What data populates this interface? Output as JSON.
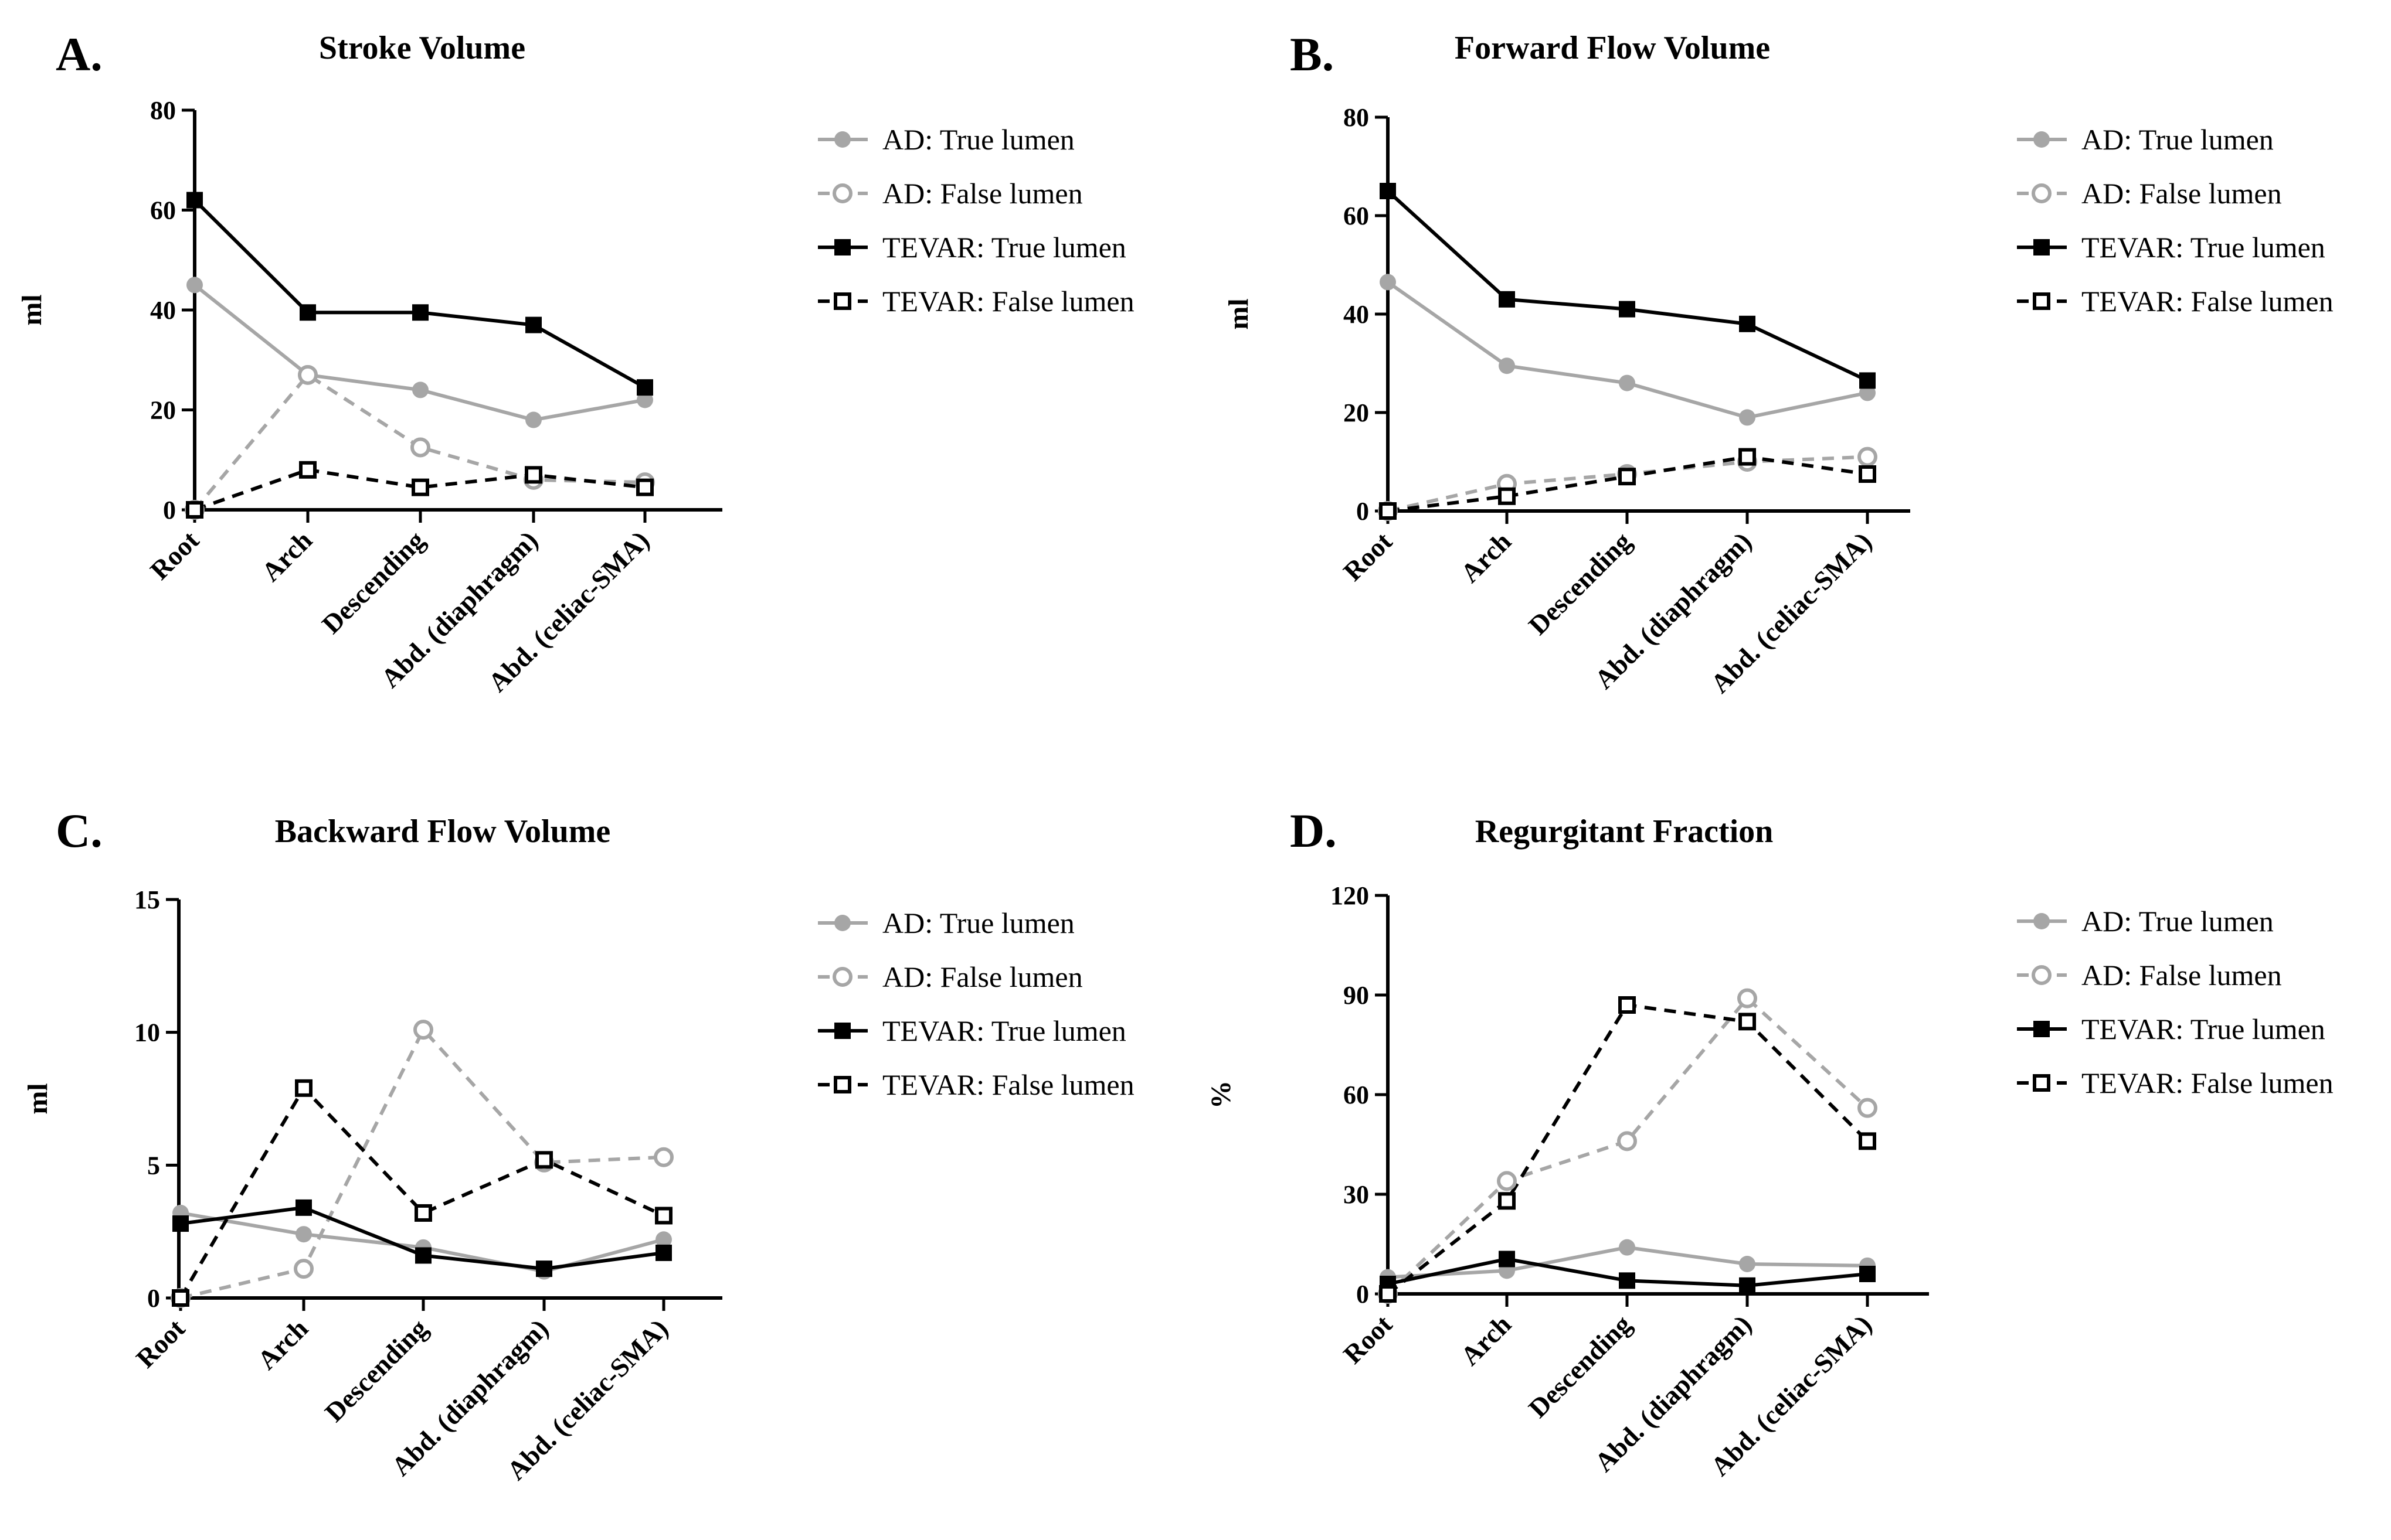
{
  "charts": [
    {
      "panel": "A.",
      "chart_data": {
        "type": "line",
        "title": "Stroke Volume",
        "ylabel": "ml",
        "xlabel": "",
        "ylim": [
          0,
          80
        ],
        "yticks": [
          0,
          20,
          40,
          60,
          80
        ],
        "categories": [
          "Root",
          "Arch",
          "Descending",
          "Abd. (diaphragm)",
          "Abd. (celiac-SMA)"
        ],
        "series": [
          {
            "name": "AD: True lumen",
            "values": [
              45,
              27,
              24,
              18,
              22
            ]
          },
          {
            "name": "AD: False lumen",
            "values": [
              0,
              27,
              12.5,
              6,
              5.5
            ]
          },
          {
            "name": "TEVAR: True lumen",
            "values": [
              62,
              39.5,
              39.5,
              37,
              24.5
            ]
          },
          {
            "name": "TEVAR: False lumen",
            "values": [
              0,
              8,
              4.5,
              7,
              4.5
            ]
          }
        ]
      }
    },
    {
      "panel": "B.",
      "chart_data": {
        "type": "line",
        "title": "Forward Flow Volume",
        "ylabel": "ml",
        "xlabel": "",
        "ylim": [
          0,
          80
        ],
        "yticks": [
          0,
          20,
          40,
          60,
          80
        ],
        "categories": [
          "Root",
          "Arch",
          "Descending",
          "Abd. (diaphragm)",
          "Abd. (celiac-SMA)"
        ],
        "series": [
          {
            "name": "AD: True lumen",
            "values": [
              46.5,
              29.5,
              26,
              19,
              24
            ]
          },
          {
            "name": "AD: False lumen",
            "values": [
              0,
              5.5,
              7.5,
              10,
              11
            ]
          },
          {
            "name": "TEVAR: True lumen",
            "values": [
              65,
              43,
              41,
              38,
              26.5
            ]
          },
          {
            "name": "TEVAR: False lumen",
            "values": [
              0,
              3,
              7,
              11,
              7.5
            ]
          }
        ]
      }
    },
    {
      "panel": "C.",
      "chart_data": {
        "type": "line",
        "title": "Backward Flow Volume",
        "ylabel": "ml",
        "xlabel": "",
        "ylim": [
          0,
          15
        ],
        "yticks": [
          0,
          5,
          10,
          15
        ],
        "categories": [
          "Root",
          "Arch",
          "Descending",
          "Abd. (diaphragm)",
          "Abd. (celiac-SMA)"
        ],
        "series": [
          {
            "name": "AD: True lumen",
            "values": [
              3.2,
              2.4,
              1.9,
              1.0,
              2.2
            ]
          },
          {
            "name": "AD: False lumen",
            "values": [
              0,
              1.1,
              10.1,
              5.1,
              5.3
            ]
          },
          {
            "name": "TEVAR: True lumen",
            "values": [
              2.8,
              3.4,
              1.6,
              1.1,
              1.7
            ]
          },
          {
            "name": "TEVAR: False lumen",
            "values": [
              0,
              7.9,
              3.2,
              5.2,
              3.1
            ]
          }
        ]
      }
    },
    {
      "panel": "D.",
      "chart_data": {
        "type": "line",
        "title": "Regurgitant Fraction",
        "ylabel": "%",
        "xlabel": "",
        "ylim": [
          0,
          120
        ],
        "yticks": [
          0,
          30,
          60,
          90,
          120
        ],
        "categories": [
          "Root",
          "Arch",
          "Descending",
          "Abd. (diaphragm)",
          "Abd. (celiac-SMA)"
        ],
        "series": [
          {
            "name": "AD: True lumen",
            "values": [
              5,
              7,
              14,
              9,
              8.5
            ]
          },
          {
            "name": "AD: False lumen",
            "values": [
              0,
              34,
              46,
              89,
              56
            ]
          },
          {
            "name": "TEVAR: True lumen",
            "values": [
              3,
              10.5,
              4,
              2.5,
              6
            ]
          },
          {
            "name": "TEVAR: False lumen",
            "values": [
              0,
              28,
              87,
              82,
              46
            ]
          }
        ]
      }
    }
  ],
  "colors": {
    "ad": "#a6a6a6",
    "tevar": "#000000"
  }
}
